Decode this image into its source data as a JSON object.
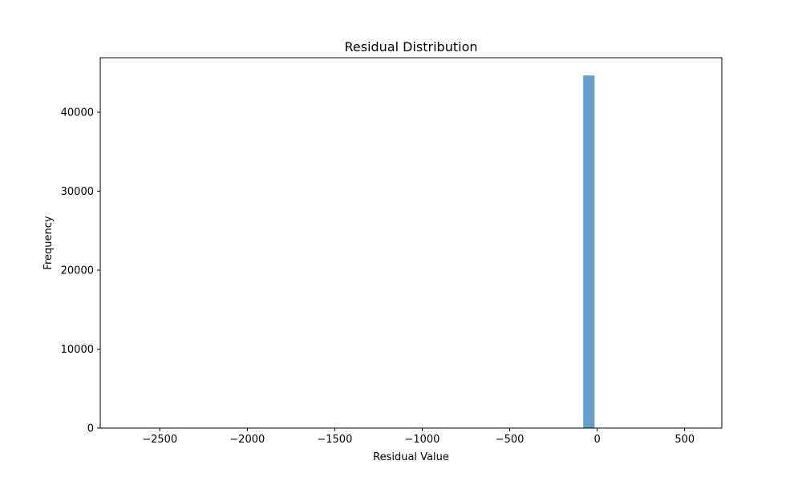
{
  "chart_data": {
    "type": "bar",
    "title": "Residual Distribution",
    "xlabel": "Residual Value",
    "ylabel": "Frequency",
    "xlim": [
      -2840,
      712
    ],
    "ylim": [
      0,
      46900
    ],
    "xticks": [
      -2500,
      -2000,
      -1500,
      -1000,
      -500,
      0,
      500
    ],
    "xtick_labels": [
      "−2500",
      "−2000",
      "−1500",
      "−1000",
      "−500",
      "0",
      "500"
    ],
    "yticks": [
      0,
      10000,
      20000,
      30000,
      40000
    ],
    "ytick_labels": [
      "0",
      "10000",
      "20000",
      "30000",
      "40000"
    ],
    "bins": [
      {
        "x0": -80,
        "x1": -15,
        "count": 44650
      }
    ],
    "bar_color": "#1f77b4",
    "bar_opacity": 0.7,
    "grid": false,
    "legend": "none"
  }
}
